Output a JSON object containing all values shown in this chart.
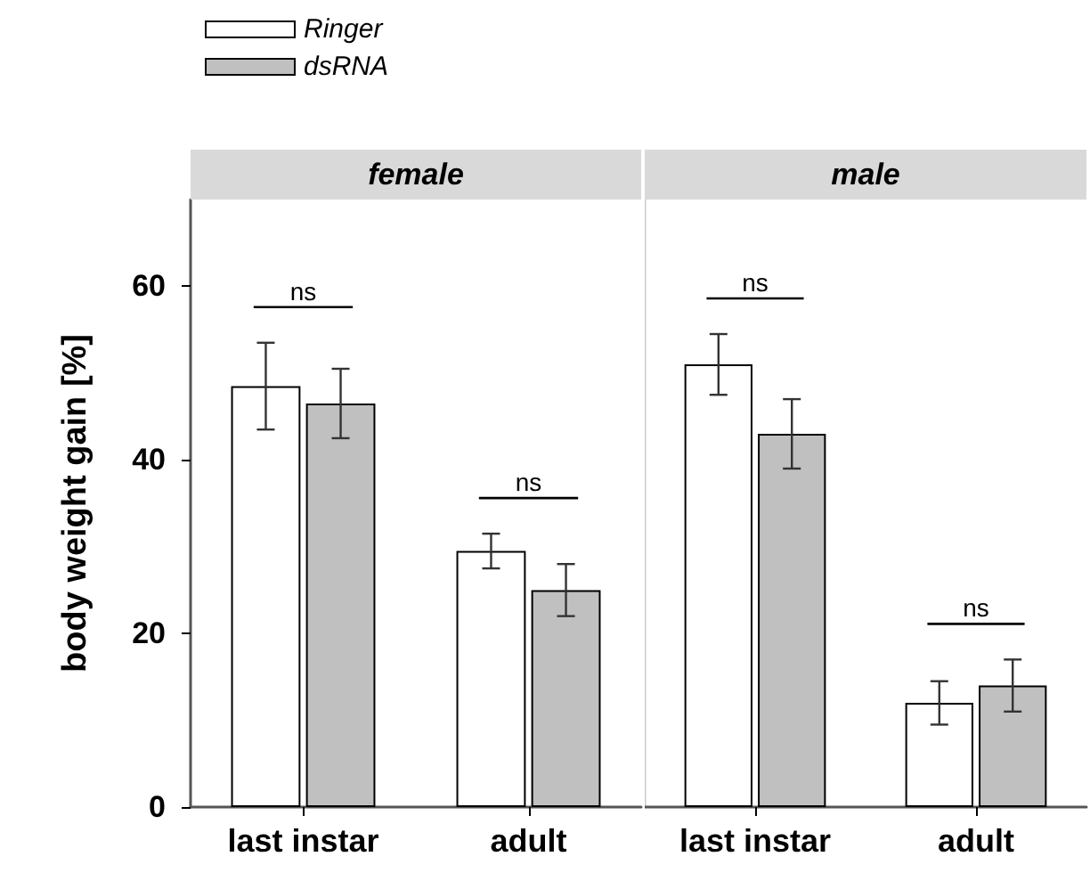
{
  "chart_data": [
    {
      "type": "bar",
      "title": "female",
      "ylabel": "body weight gain [%]",
      "categories": [
        "last instar",
        "adult"
      ],
      "series": [
        {
          "name": "Ringer",
          "color": "#ffffff",
          "values": [
            48.5,
            29.5
          ],
          "errors": [
            5,
            2
          ]
        },
        {
          "name": "dsRNA",
          "color": "#c0c0c0",
          "values": [
            46.5,
            25
          ],
          "errors": [
            4,
            3
          ]
        }
      ],
      "ylim": [
        0,
        70
      ],
      "yticks": [
        0,
        20,
        40,
        60
      ],
      "legend": "top left",
      "annotations": [
        "ns",
        "ns"
      ]
    },
    {
      "type": "bar",
      "title": "male",
      "categories": [
        "last instar",
        "adult"
      ],
      "series": [
        {
          "color": "#ffffff",
          "values": [
            51,
            12
          ],
          "errors": [
            3.5,
            2.5
          ]
        },
        {
          "color": "#c0c0c0",
          "values": [
            43,
            14
          ],
          "errors": [
            4,
            3
          ]
        }
      ],
      "ylim": [
        0,
        70
      ],
      "yticks": [
        0,
        20,
        40,
        60
      ],
      "tick_labels": "x",
      "legend": false,
      "annotations": [
        "ns",
        "ns"
      ]
    }
  ]
}
